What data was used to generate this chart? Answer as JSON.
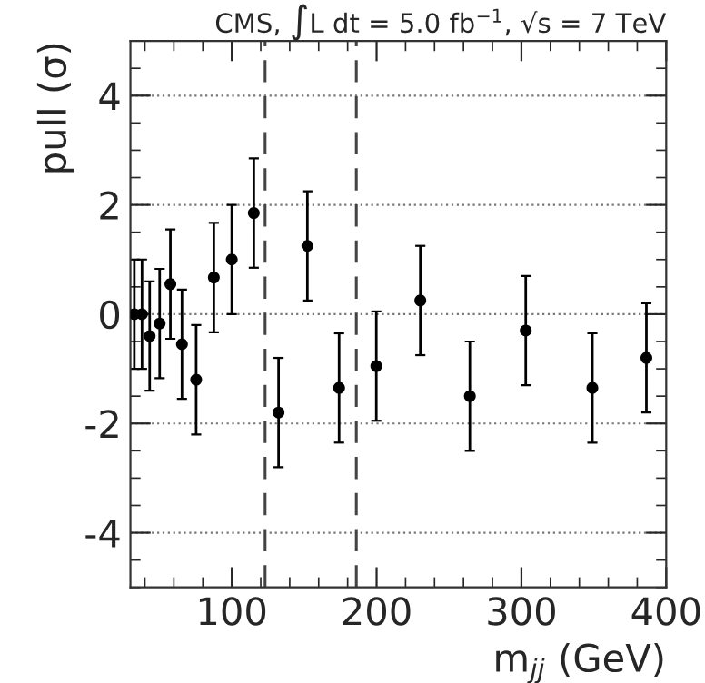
{
  "chart_data": {
    "type": "scatter",
    "title": "CMS, ∫L dt = 5.0 fb$^{−1}$, √s = 7 TeV",
    "xlabel": "m$_{jj}$ (GeV)",
    "ylabel": "pull (σ)",
    "x": [
      32.7,
      38,
      43.3,
      50.2,
      57.6,
      65.6,
      75.4,
      87.6,
      100,
      115.2,
      132.3,
      152.2,
      174.1,
      199.8,
      230.2,
      264.4,
      303,
      349,
      386.3
    ],
    "values": [
      0,
      0,
      -0.4,
      -0.17,
      0.55,
      -0.55,
      -1.2,
      0.67,
      1.0,
      1.85,
      -1.8,
      1.25,
      -1.35,
      -0.95,
      0.25,
      -1.5,
      -0.3,
      -1.35,
      -0.8
    ],
    "errors": [
      1,
      1,
      1,
      1,
      1,
      1,
      1,
      1,
      1,
      1,
      1,
      1,
      1,
      1,
      1,
      1,
      1,
      1,
      1
    ],
    "color": "#000000",
    "marker": "circle",
    "xlim": [
      30,
      400
    ],
    "xticks": [
      100,
      200,
      300,
      400
    ],
    "ylim": [
      -5,
      5
    ],
    "yticks": [
      -4,
      -2,
      0,
      2,
      4
    ],
    "grid": "y",
    "ref_lines": [
      {
        "axis": "x",
        "value": 123,
        "line_style": "dashed"
      },
      {
        "axis": "x",
        "value": 186,
        "line_style": "dashed"
      }
    ]
  }
}
